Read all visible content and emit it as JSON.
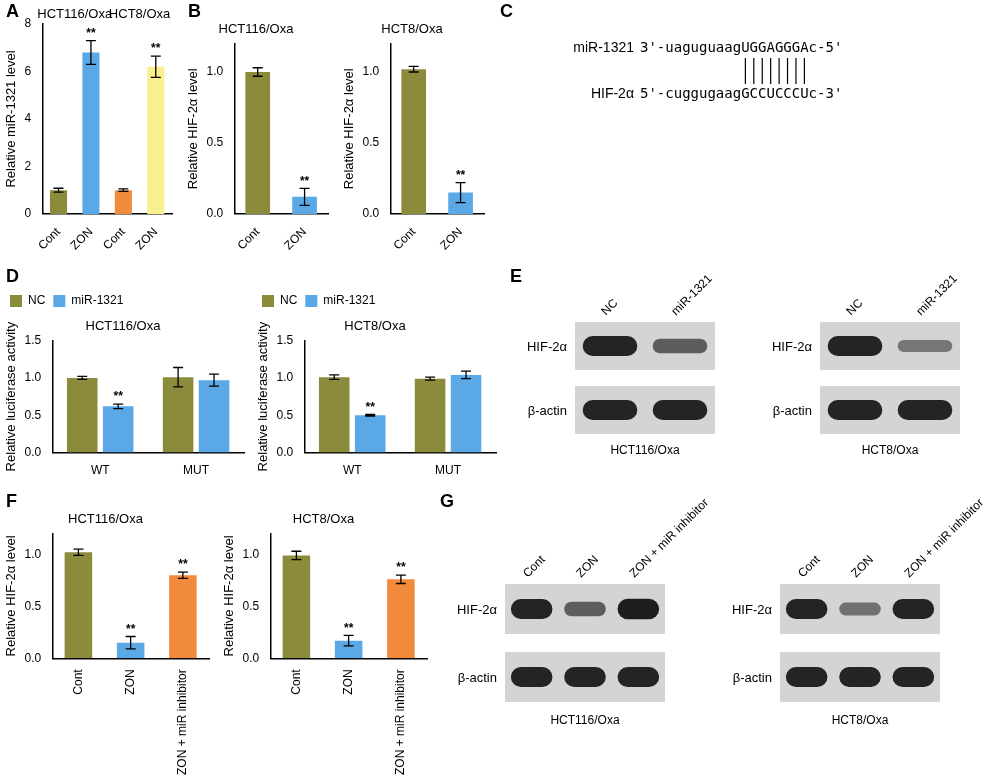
{
  "chart_data": [
    {
      "panel": "A",
      "type": "bar",
      "y_label": "Relative miR-1321 level",
      "categories": [
        "Cont",
        "ZON",
        "Cont",
        "ZON"
      ],
      "values": [
        1.0,
        6.8,
        1.0,
        6.2
      ],
      "errors": [
        0.08,
        0.5,
        0.05,
        0.45
      ],
      "annotations": [
        null,
        "**",
        null,
        "**"
      ],
      "colors": [
        "#8c8a3b",
        "#5aa9e6",
        "#f28a3c",
        "#f9ef8e"
      ],
      "groups": [
        {
          "label": "HCT116/Oxa",
          "start": 0,
          "end": 1
        },
        {
          "label": "HCT8/Oxa",
          "start": 2,
          "end": 3
        }
      ],
      "ylim": [
        0,
        8
      ],
      "yticks": [
        0,
        2,
        4,
        6,
        8
      ],
      "grid": false
    },
    {
      "panel": "B",
      "type": "bar",
      "title": "HCT116/Oxa",
      "y_label": "Relative HIF-2α level",
      "categories": [
        "Cont",
        "ZON"
      ],
      "values": [
        1.0,
        0.12
      ],
      "errors": [
        0.03,
        0.06
      ],
      "annotations": [
        null,
        "**"
      ],
      "colors": [
        "#8c8a3b",
        "#5aa9e6"
      ],
      "ylim": [
        0,
        1.2
      ],
      "yticks": [
        {
          "value": 0,
          "label": "0.0"
        },
        {
          "value": 0.5,
          "label": "0.5"
        },
        {
          "value": 1,
          "label": "1.0"
        }
      ],
      "grid": false
    },
    {
      "type": "bar",
      "title": "HCT8/Oxa",
      "y_label": "Relative HIF-2α level",
      "categories": [
        "Cont",
        "ZON"
      ],
      "values": [
        1.02,
        0.15
      ],
      "errors": [
        0.02,
        0.07
      ],
      "annotations": [
        null,
        "**"
      ],
      "colors": [
        "#8c8a3b",
        "#5aa9e6"
      ],
      "ylim": [
        0,
        1.2
      ],
      "yticks": [
        {
          "value": 0,
          "label": "0.0"
        },
        {
          "value": 0.5,
          "label": "0.5"
        },
        {
          "value": 1,
          "label": "1.0"
        }
      ],
      "grid": false
    },
    {
      "panel": "D",
      "type": "bar",
      "title": "HCT116/Oxa",
      "y_label": "Relative luciferase activity",
      "categories": [
        "WT",
        "MUT"
      ],
      "series": [
        {
          "name": "NC",
          "color": "#8c8a3b",
          "values": [
            1.0,
            1.01
          ],
          "errors": [
            0.02,
            0.13
          ],
          "annotations": [
            null,
            null
          ]
        },
        {
          "name": "miR-1321",
          "color": "#5aa9e6",
          "values": [
            0.62,
            0.97
          ],
          "errors": [
            0.03,
            0.08
          ],
          "annotations": [
            "**",
            null
          ]
        }
      ],
      "legend": "top",
      "ylim": [
        0,
        1.5
      ],
      "yticks": [
        {
          "value": 0,
          "label": "0.0"
        },
        {
          "value": 0.5,
          "label": "0.5"
        },
        {
          "value": 1,
          "label": "1.0"
        },
        {
          "value": 1.5,
          "label": "1.5"
        }
      ],
      "grid": false
    },
    {
      "type": "bar",
      "title": "HCT8/Oxa",
      "y_label": "Relative luciferase activity",
      "categories": [
        "WT",
        "MUT"
      ],
      "series": [
        {
          "name": "NC",
          "color": "#8c8a3b",
          "values": [
            1.01,
            0.99
          ],
          "errors": [
            0.03,
            0.02
          ],
          "annotations": [
            null,
            null
          ]
        },
        {
          "name": "miR-1321",
          "color": "#5aa9e6",
          "values": [
            0.5,
            1.04
          ],
          "errors": [
            0.01,
            0.05
          ],
          "annotations": [
            "**",
            null
          ]
        }
      ],
      "legend": "top",
      "ylim": [
        0,
        1.5
      ],
      "yticks": [
        {
          "value": 0,
          "label": "0.0"
        },
        {
          "value": 0.5,
          "label": "0.5"
        },
        {
          "value": 1,
          "label": "1.0"
        },
        {
          "value": 1.5,
          "label": "1.5"
        }
      ],
      "grid": false
    },
    {
      "panel": "F",
      "type": "bar",
      "title": "HCT116/Oxa",
      "y_label": "Relative HIF-2α level",
      "categories": [
        "Cont",
        "ZON",
        "ZON + miR inhibitor"
      ],
      "values": [
        1.02,
        0.15,
        0.8
      ],
      "errors": [
        0.03,
        0.06,
        0.03
      ],
      "annotations": [
        null,
        "**",
        "**"
      ],
      "colors": [
        "#8c8a3b",
        "#5aa9e6",
        "#f28a3c"
      ],
      "ylim": [
        0,
        1.2
      ],
      "yticks": [
        {
          "value": 0,
          "label": "0.0"
        },
        {
          "value": 0.5,
          "label": "0.5"
        },
        {
          "value": 1,
          "label": "1.0"
        }
      ],
      "grid": false
    },
    {
      "type": "bar",
      "title": "HCT8/Oxa",
      "y_label": "Relative HIF-2α level",
      "categories": [
        "Cont",
        "ZON",
        "ZON + miR inhibitor"
      ],
      "values": [
        0.99,
        0.17,
        0.76
      ],
      "errors": [
        0.04,
        0.05,
        0.04
      ],
      "annotations": [
        null,
        "**",
        "**"
      ],
      "colors": [
        "#8c8a3b",
        "#5aa9e6",
        "#f28a3c"
      ],
      "ylim": [
        0,
        1.2
      ],
      "yticks": [
        {
          "value": 0,
          "label": "0.0"
        },
        {
          "value": 0.5,
          "label": "0.5"
        },
        {
          "value": 1,
          "label": "1.0"
        }
      ],
      "grid": false
    }
  ],
  "alignment": {
    "panel": "C",
    "rows": [
      {
        "name": "miR-1321",
        "sequence": "3'-uaguguaagUGGAGGGAc-5'"
      },
      {
        "name": "HIF-2α",
        "sequence": "5'-cuggugaagGCCUCCCUc-3'"
      }
    ]
  },
  "blots": [
    {
      "panel": "E",
      "blocks": [
        {
          "caption": "HCT116/Oxa",
          "lanes": [
            "NC",
            "miR-1321"
          ],
          "rows": [
            {
              "label": "HIF-2α",
              "band_intensity": [
                1.0,
                0.55
              ]
            },
            {
              "label": "β-actin",
              "band_intensity": [
                1.0,
                1.0
              ]
            }
          ]
        },
        {
          "caption": "HCT8/Oxa",
          "lanes": [
            "NC",
            "miR-1321"
          ],
          "rows": [
            {
              "label": "HIF-2α",
              "band_intensity": [
                1.0,
                0.35
              ]
            },
            {
              "label": "β-actin",
              "band_intensity": [
                1.0,
                1.0
              ]
            }
          ]
        }
      ]
    },
    {
      "panel": "G",
      "blocks": [
        {
          "caption": "HCT116/Oxa",
          "lanes": [
            "Cont",
            "ZON",
            "ZON + miR inhibitor"
          ],
          "rows": [
            {
              "label": "HIF-2α",
              "band_intensity": [
                1.0,
                0.55,
                1.05
              ]
            },
            {
              "label": "β-actin",
              "band_intensity": [
                1.0,
                1.0,
                1.0
              ]
            }
          ]
        },
        {
          "caption": "HCT8/Oxa",
          "lanes": [
            "Cont",
            "ZON",
            "ZON + miR inhibitor"
          ],
          "rows": [
            {
              "label": "HIF-2α",
              "band_intensity": [
                1.0,
                0.4,
                1.0
              ]
            },
            {
              "label": "β-actin",
              "band_intensity": [
                1.0,
                1.0,
                1.0
              ]
            }
          ]
        }
      ]
    }
  ]
}
